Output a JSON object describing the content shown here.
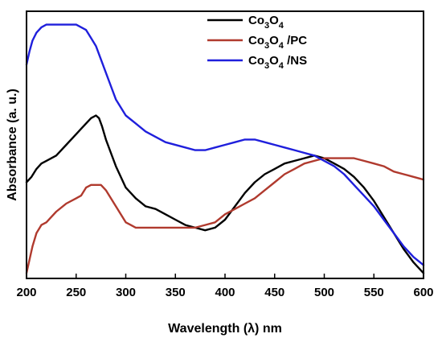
{
  "chart_data": {
    "type": "line",
    "xlabel": "Wavelength (λ)  nm",
    "ylabel": "Absorbance (a. u.)",
    "xlim": [
      200,
      600
    ],
    "ylim": [
      0,
      1
    ],
    "xticks": [
      200,
      250,
      300,
      350,
      400,
      450,
      500,
      550,
      600
    ],
    "grid": false,
    "legend_position": "top-right",
    "series": [
      {
        "name": "Co3O4",
        "name_parts": {
          "base": "Co",
          "sub1": "3",
          "mid": "O",
          "sub2": "4",
          "suffix": ""
        },
        "color": "#000000",
        "x": [
          200,
          205,
          210,
          215,
          220,
          230,
          240,
          250,
          255,
          260,
          265,
          270,
          273,
          276,
          280,
          285,
          290,
          300,
          310,
          320,
          330,
          340,
          350,
          360,
          370,
          380,
          390,
          400,
          410,
          420,
          430,
          440,
          450,
          460,
          470,
          480,
          490,
          500,
          510,
          520,
          530,
          540,
          550,
          560,
          570,
          580,
          590,
          600
        ],
        "y": [
          0.36,
          0.38,
          0.41,
          0.43,
          0.44,
          0.46,
          0.5,
          0.54,
          0.56,
          0.58,
          0.6,
          0.61,
          0.6,
          0.57,
          0.52,
          0.47,
          0.42,
          0.34,
          0.3,
          0.27,
          0.26,
          0.24,
          0.22,
          0.2,
          0.19,
          0.18,
          0.19,
          0.22,
          0.27,
          0.32,
          0.36,
          0.39,
          0.41,
          0.43,
          0.44,
          0.45,
          0.46,
          0.45,
          0.43,
          0.41,
          0.38,
          0.34,
          0.29,
          0.23,
          0.17,
          0.11,
          0.06,
          0.02
        ]
      },
      {
        "name": "Co3O4 /PC",
        "name_parts": {
          "base": "Co",
          "sub1": "3",
          "mid": "O",
          "sub2": "4",
          "suffix": " /PC"
        },
        "color": "#b03a2e",
        "x": [
          200,
          203,
          206,
          210,
          215,
          220,
          225,
          230,
          240,
          250,
          255,
          260,
          265,
          270,
          275,
          280,
          285,
          290,
          295,
          300,
          305,
          310,
          320,
          340,
          360,
          370,
          380,
          390,
          400,
          410,
          420,
          430,
          440,
          450,
          460,
          470,
          480,
          490,
          500,
          510,
          520,
          530,
          540,
          550,
          560,
          570,
          580,
          590,
          600
        ],
        "y": [
          0.02,
          0.07,
          0.12,
          0.17,
          0.2,
          0.21,
          0.23,
          0.25,
          0.28,
          0.3,
          0.31,
          0.34,
          0.35,
          0.35,
          0.35,
          0.33,
          0.3,
          0.27,
          0.24,
          0.21,
          0.2,
          0.19,
          0.19,
          0.19,
          0.19,
          0.19,
          0.2,
          0.21,
          0.24,
          0.26,
          0.28,
          0.3,
          0.33,
          0.36,
          0.39,
          0.41,
          0.43,
          0.44,
          0.45,
          0.45,
          0.45,
          0.45,
          0.44,
          0.43,
          0.42,
          0.4,
          0.39,
          0.38,
          0.37
        ]
      },
      {
        "name": "Co3O4 /NS",
        "name_parts": {
          "base": "Co",
          "sub1": "3",
          "mid": "O",
          "sub2": "4",
          "suffix": " /NS"
        },
        "color": "#1f1fdc",
        "x": [
          200,
          203,
          206,
          210,
          215,
          220,
          230,
          240,
          250,
          260,
          265,
          270,
          275,
          280,
          285,
          290,
          300,
          310,
          320,
          340,
          360,
          370,
          380,
          390,
          400,
          410,
          420,
          430,
          440,
          450,
          460,
          470,
          480,
          490,
          500,
          510,
          520,
          530,
          540,
          550,
          560,
          570,
          580,
          590,
          600
        ],
        "y": [
          0.8,
          0.85,
          0.89,
          0.92,
          0.94,
          0.95,
          0.95,
          0.95,
          0.95,
          0.93,
          0.9,
          0.87,
          0.82,
          0.77,
          0.72,
          0.67,
          0.61,
          0.58,
          0.55,
          0.51,
          0.49,
          0.48,
          0.48,
          0.49,
          0.5,
          0.51,
          0.52,
          0.52,
          0.51,
          0.5,
          0.49,
          0.48,
          0.47,
          0.46,
          0.44,
          0.42,
          0.39,
          0.35,
          0.31,
          0.27,
          0.22,
          0.17,
          0.12,
          0.08,
          0.05
        ]
      }
    ]
  }
}
